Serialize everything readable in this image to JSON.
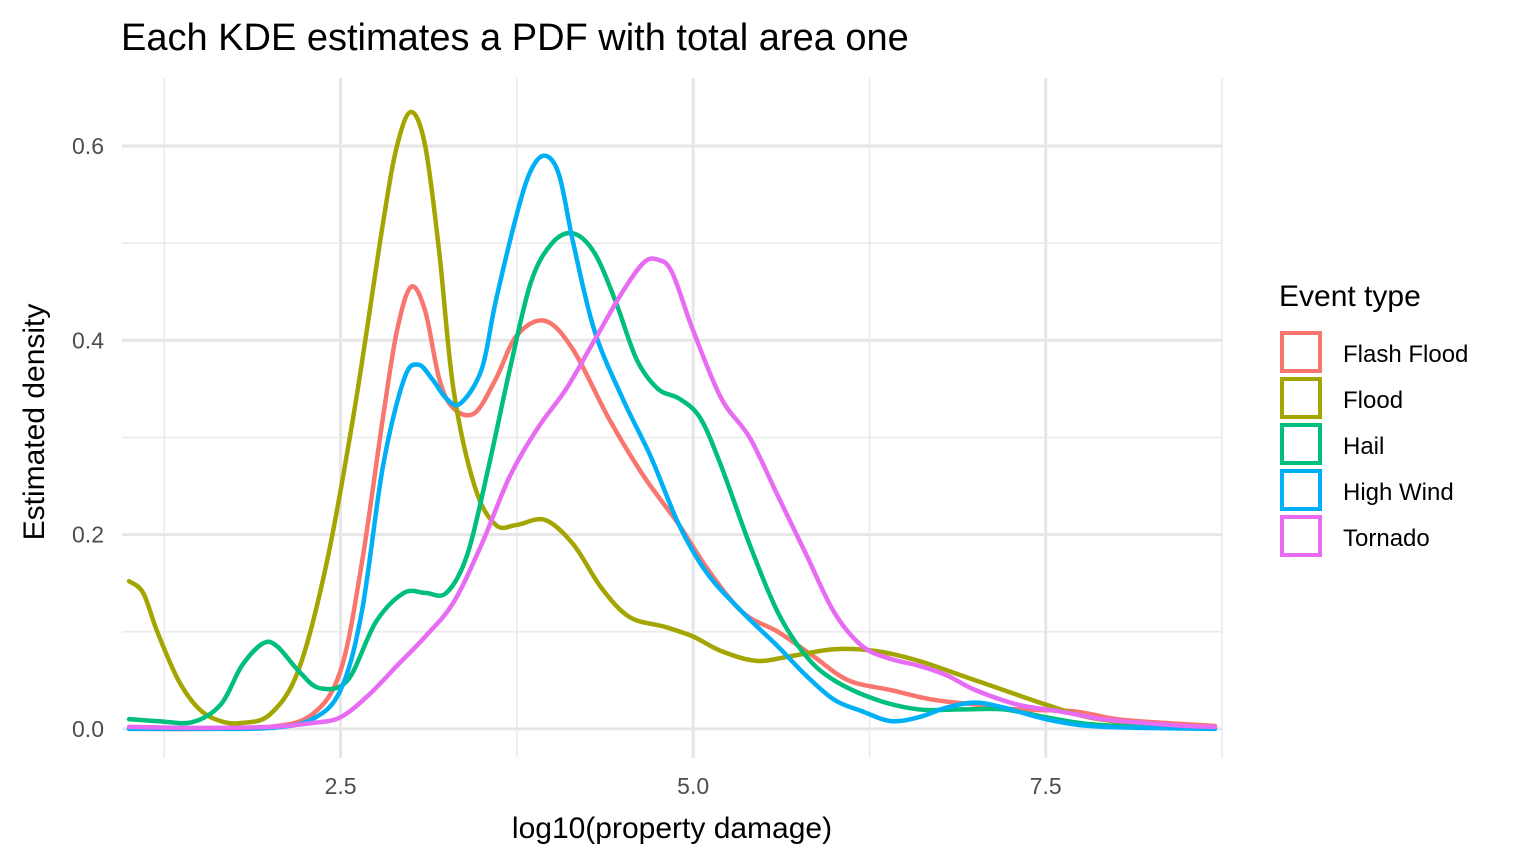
{
  "chart_data": {
    "type": "line",
    "title": "Each KDE estimates a PDF with total area one",
    "xlabel": "log10(property damage)",
    "ylabel": "Estimated density",
    "xlim": [
      0.95,
      8.75
    ],
    "ylim": [
      -0.03,
      0.67
    ],
    "x_ticks": [
      2.5,
      5.0,
      7.5
    ],
    "x_tick_labels": [
      "2.5",
      "5.0",
      "7.5"
    ],
    "y_ticks": [
      0.0,
      0.2,
      0.4,
      0.6
    ],
    "y_tick_labels": [
      "0.0",
      "0.2",
      "0.4",
      "0.6"
    ],
    "x_minor_ticks": [
      1.25,
      3.75,
      6.25,
      8.75
    ],
    "y_minor_ticks": [
      0.1,
      0.3,
      0.5
    ],
    "grid": true,
    "legend": {
      "title": "Event type",
      "placement": "right"
    },
    "series": [
      {
        "name": "Flash Flood",
        "color": "#F8766D",
        "points": [
          [
            1.0,
            0.0
          ],
          [
            1.5,
            0.0
          ],
          [
            2.0,
            0.002
          ],
          [
            2.3,
            0.015
          ],
          [
            2.5,
            0.06
          ],
          [
            2.65,
            0.17
          ],
          [
            2.8,
            0.32
          ],
          [
            2.9,
            0.41
          ],
          [
            3.0,
            0.455
          ],
          [
            3.1,
            0.43
          ],
          [
            3.2,
            0.36
          ],
          [
            3.3,
            0.33
          ],
          [
            3.45,
            0.325
          ],
          [
            3.6,
            0.36
          ],
          [
            3.75,
            0.405
          ],
          [
            3.95,
            0.42
          ],
          [
            4.15,
            0.39
          ],
          [
            4.4,
            0.32
          ],
          [
            4.65,
            0.26
          ],
          [
            4.9,
            0.21
          ],
          [
            5.1,
            0.165
          ],
          [
            5.35,
            0.12
          ],
          [
            5.6,
            0.1
          ],
          [
            5.85,
            0.075
          ],
          [
            6.1,
            0.05
          ],
          [
            6.4,
            0.04
          ],
          [
            6.7,
            0.03
          ],
          [
            7.0,
            0.025
          ],
          [
            7.3,
            0.02
          ],
          [
            7.7,
            0.018
          ],
          [
            8.0,
            0.01
          ],
          [
            8.35,
            0.006
          ],
          [
            8.7,
            0.003
          ]
        ]
      },
      {
        "name": "Flood",
        "color": "#A3A500",
        "points": [
          [
            1.0,
            0.152
          ],
          [
            1.1,
            0.14
          ],
          [
            1.2,
            0.1
          ],
          [
            1.35,
            0.05
          ],
          [
            1.5,
            0.02
          ],
          [
            1.65,
            0.008
          ],
          [
            1.8,
            0.006
          ],
          [
            2.0,
            0.015
          ],
          [
            2.2,
            0.06
          ],
          [
            2.4,
            0.17
          ],
          [
            2.6,
            0.33
          ],
          [
            2.8,
            0.52
          ],
          [
            2.9,
            0.6
          ],
          [
            3.0,
            0.635
          ],
          [
            3.1,
            0.6
          ],
          [
            3.2,
            0.49
          ],
          [
            3.3,
            0.35
          ],
          [
            3.45,
            0.25
          ],
          [
            3.6,
            0.21
          ],
          [
            3.75,
            0.21
          ],
          [
            3.95,
            0.215
          ],
          [
            4.15,
            0.19
          ],
          [
            4.35,
            0.145
          ],
          [
            4.55,
            0.115
          ],
          [
            4.8,
            0.105
          ],
          [
            5.0,
            0.095
          ],
          [
            5.2,
            0.08
          ],
          [
            5.45,
            0.07
          ],
          [
            5.7,
            0.075
          ],
          [
            6.0,
            0.082
          ],
          [
            6.3,
            0.08
          ],
          [
            6.6,
            0.07
          ],
          [
            6.9,
            0.055
          ],
          [
            7.2,
            0.04
          ],
          [
            7.5,
            0.025
          ],
          [
            7.8,
            0.012
          ],
          [
            8.1,
            0.006
          ],
          [
            8.4,
            0.003
          ],
          [
            8.7,
            0.001
          ]
        ]
      },
      {
        "name": "Hail",
        "color": "#00BF7D",
        "points": [
          [
            1.0,
            0.01
          ],
          [
            1.2,
            0.008
          ],
          [
            1.45,
            0.007
          ],
          [
            1.65,
            0.025
          ],
          [
            1.8,
            0.065
          ],
          [
            1.95,
            0.088
          ],
          [
            2.05,
            0.085
          ],
          [
            2.2,
            0.06
          ],
          [
            2.35,
            0.042
          ],
          [
            2.55,
            0.05
          ],
          [
            2.75,
            0.11
          ],
          [
            2.95,
            0.14
          ],
          [
            3.1,
            0.14
          ],
          [
            3.25,
            0.14
          ],
          [
            3.4,
            0.18
          ],
          [
            3.55,
            0.27
          ],
          [
            3.7,
            0.37
          ],
          [
            3.85,
            0.46
          ],
          [
            4.0,
            0.5
          ],
          [
            4.15,
            0.51
          ],
          [
            4.3,
            0.49
          ],
          [
            4.45,
            0.44
          ],
          [
            4.6,
            0.38
          ],
          [
            4.75,
            0.35
          ],
          [
            4.9,
            0.34
          ],
          [
            5.05,
            0.32
          ],
          [
            5.2,
            0.27
          ],
          [
            5.4,
            0.19
          ],
          [
            5.6,
            0.12
          ],
          [
            5.8,
            0.075
          ],
          [
            6.0,
            0.05
          ],
          [
            6.3,
            0.03
          ],
          [
            6.6,
            0.02
          ],
          [
            6.9,
            0.02
          ],
          [
            7.2,
            0.02
          ],
          [
            7.5,
            0.012
          ],
          [
            7.8,
            0.005
          ],
          [
            8.2,
            0.002
          ],
          [
            8.7,
            0.001
          ]
        ]
      },
      {
        "name": "High Wind",
        "color": "#00B0F6",
        "points": [
          [
            1.0,
            0.0
          ],
          [
            1.5,
            0.0
          ],
          [
            2.0,
            0.001
          ],
          [
            2.3,
            0.01
          ],
          [
            2.5,
            0.04
          ],
          [
            2.65,
            0.12
          ],
          [
            2.8,
            0.27
          ],
          [
            2.95,
            0.36
          ],
          [
            3.05,
            0.375
          ],
          [
            3.15,
            0.36
          ],
          [
            3.25,
            0.34
          ],
          [
            3.35,
            0.335
          ],
          [
            3.5,
            0.37
          ],
          [
            3.6,
            0.44
          ],
          [
            3.75,
            0.53
          ],
          [
            3.85,
            0.575
          ],
          [
            3.95,
            0.59
          ],
          [
            4.05,
            0.57
          ],
          [
            4.15,
            0.5
          ],
          [
            4.3,
            0.41
          ],
          [
            4.5,
            0.34
          ],
          [
            4.7,
            0.28
          ],
          [
            4.9,
            0.21
          ],
          [
            5.1,
            0.16
          ],
          [
            5.35,
            0.12
          ],
          [
            5.6,
            0.085
          ],
          [
            5.8,
            0.055
          ],
          [
            6.0,
            0.03
          ],
          [
            6.2,
            0.018
          ],
          [
            6.4,
            0.008
          ],
          [
            6.6,
            0.012
          ],
          [
            6.8,
            0.022
          ],
          [
            7.0,
            0.027
          ],
          [
            7.2,
            0.022
          ],
          [
            7.5,
            0.01
          ],
          [
            7.8,
            0.003
          ],
          [
            8.2,
            0.001
          ],
          [
            8.7,
            0.0
          ]
        ]
      },
      {
        "name": "Tornado",
        "color": "#E76BF3",
        "points": [
          [
            1.0,
            0.002
          ],
          [
            1.5,
            0.001
          ],
          [
            2.0,
            0.002
          ],
          [
            2.3,
            0.006
          ],
          [
            2.5,
            0.012
          ],
          [
            2.7,
            0.035
          ],
          [
            2.9,
            0.065
          ],
          [
            3.1,
            0.095
          ],
          [
            3.3,
            0.13
          ],
          [
            3.5,
            0.19
          ],
          [
            3.7,
            0.26
          ],
          [
            3.9,
            0.31
          ],
          [
            4.1,
            0.35
          ],
          [
            4.3,
            0.4
          ],
          [
            4.5,
            0.45
          ],
          [
            4.65,
            0.48
          ],
          [
            4.75,
            0.483
          ],
          [
            4.85,
            0.47
          ],
          [
            5.0,
            0.41
          ],
          [
            5.2,
            0.34
          ],
          [
            5.4,
            0.3
          ],
          [
            5.6,
            0.24
          ],
          [
            5.8,
            0.18
          ],
          [
            6.0,
            0.12
          ],
          [
            6.2,
            0.085
          ],
          [
            6.4,
            0.072
          ],
          [
            6.6,
            0.065
          ],
          [
            6.8,
            0.055
          ],
          [
            7.0,
            0.04
          ],
          [
            7.3,
            0.025
          ],
          [
            7.6,
            0.018
          ],
          [
            7.9,
            0.01
          ],
          [
            8.2,
            0.006
          ],
          [
            8.5,
            0.003
          ],
          [
            8.7,
            0.002
          ]
        ]
      }
    ]
  }
}
